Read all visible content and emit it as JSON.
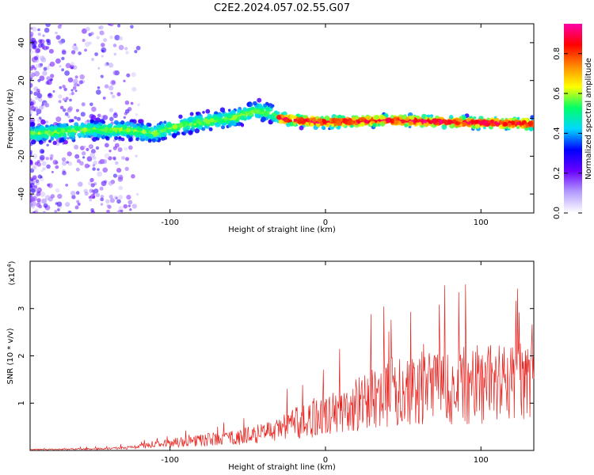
{
  "title": "C2E2.2024.057.02.55.G07",
  "chart_data": [
    {
      "type": "heatmap",
      "xlabel": "Height of straight line (km)",
      "ylabel": "Frequency (Hz)",
      "xlim": [
        -190,
        134
      ],
      "ylim": [
        -50,
        50
      ],
      "xticks": [
        -100,
        0,
        100
      ],
      "yticks": [
        -40,
        -20,
        0,
        20,
        40
      ],
      "colorbar": {
        "label": "Normalized spectral amplitude",
        "range": [
          0.0,
          0.95
        ],
        "ticks": [
          0.0,
          0.2,
          0.4,
          0.6,
          0.8
        ],
        "colors": [
          "#ffffff",
          "#b39bff",
          "#6a00ff",
          "#0000ff",
          "#00d8ff",
          "#00ff66",
          "#ffff00",
          "#ff8800",
          "#ff0000",
          "#ff00aa"
        ]
      },
      "ridge": {
        "x": [
          -185,
          -170,
          -150,
          -130,
          -110,
          -100,
          -80,
          -60,
          -45,
          -35,
          -30,
          -20,
          0,
          40,
          80,
          134
        ],
        "freq": [
          -8,
          -7,
          -6,
          -6,
          -8,
          -5,
          -2,
          0,
          4,
          3,
          0,
          -1,
          -2,
          -1,
          -2,
          -3
        ]
      },
      "grid": false
    },
    {
      "type": "line",
      "xlabel": "Height of straight line (km)",
      "ylabel": "SNR (10 * v/v)",
      "scale_label": "(x10^4)",
      "xlim": [
        -190,
        134
      ],
      "ylim": [
        0,
        4
      ],
      "xticks": [
        -100,
        0,
        100
      ],
      "yticks": [
        1,
        2,
        3
      ],
      "color": "#e8231f",
      "envelope": {
        "x": [
          -190,
          -140,
          -120,
          -100,
          -80,
          -60,
          -40,
          -20,
          -5,
          10,
          25,
          40,
          60,
          80,
          100,
          120,
          134
        ],
        "values": [
          0.02,
          0.04,
          0.09,
          0.18,
          0.25,
          0.3,
          0.42,
          0.65,
          0.8,
          0.95,
          1.2,
          1.4,
          1.5,
          1.55,
          1.6,
          1.6,
          1.65
        ]
      },
      "grid": false
    }
  ]
}
